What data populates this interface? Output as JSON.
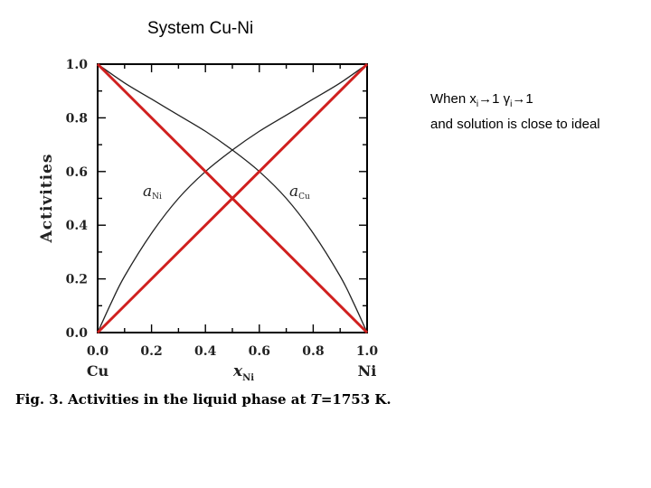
{
  "slide": {
    "title": "System Cu-Ni"
  },
  "note": {
    "line1_prefix": "When x",
    "line1_sub1": "i",
    "line1_mid": "1 γ",
    "line1_sub2": "i",
    "line1_end": "1",
    "arrow": "→",
    "line2": "and solution is close to ideal"
  },
  "chart_data": {
    "type": "line",
    "xlim": [
      0,
      1
    ],
    "ylim": [
      0,
      1
    ],
    "ylabel": "Activities",
    "x_tick_labels": [
      "0.0",
      "0.2",
      "0.4",
      "0.6",
      "0.8",
      "1.0"
    ],
    "y_tick_labels": [
      "0.0",
      "0.2",
      "0.4",
      "0.6",
      "0.8",
      "1.0"
    ],
    "x_end_labels": [
      "Cu",
      "Ni"
    ],
    "xlabel": {
      "main": "x",
      "sub": "Ni"
    },
    "series": [
      {
        "name": "a_Ni",
        "label_main": "a",
        "label_sub": "Ni",
        "x": [
          0,
          0.05,
          0.1,
          0.2,
          0.3,
          0.4,
          0.5,
          0.6,
          0.7,
          0.8,
          0.9,
          1.0
        ],
        "y": [
          0,
          0.11,
          0.21,
          0.37,
          0.5,
          0.6,
          0.68,
          0.75,
          0.81,
          0.87,
          0.93,
          1.0
        ]
      },
      {
        "name": "a_Cu",
        "label_main": "a",
        "label_sub": "Cu",
        "x": [
          0,
          0.1,
          0.2,
          0.3,
          0.4,
          0.5,
          0.6,
          0.7,
          0.8,
          0.9,
          0.95,
          1.0
        ],
        "y": [
          1.0,
          0.93,
          0.87,
          0.81,
          0.75,
          0.68,
          0.6,
          0.5,
          0.37,
          0.21,
          0.11,
          0
        ]
      }
    ],
    "ideal_lines": {
      "color": "#d0201f",
      "lines": [
        {
          "x": [
            0,
            1
          ],
          "y": [
            0,
            1
          ]
        },
        {
          "x": [
            0,
            1
          ],
          "y": [
            1,
            0
          ]
        }
      ]
    }
  },
  "caption": {
    "prefix": "Fig. 3. Activities in the liquid phase at ",
    "T": "T",
    "suffix": "=1753 K."
  }
}
